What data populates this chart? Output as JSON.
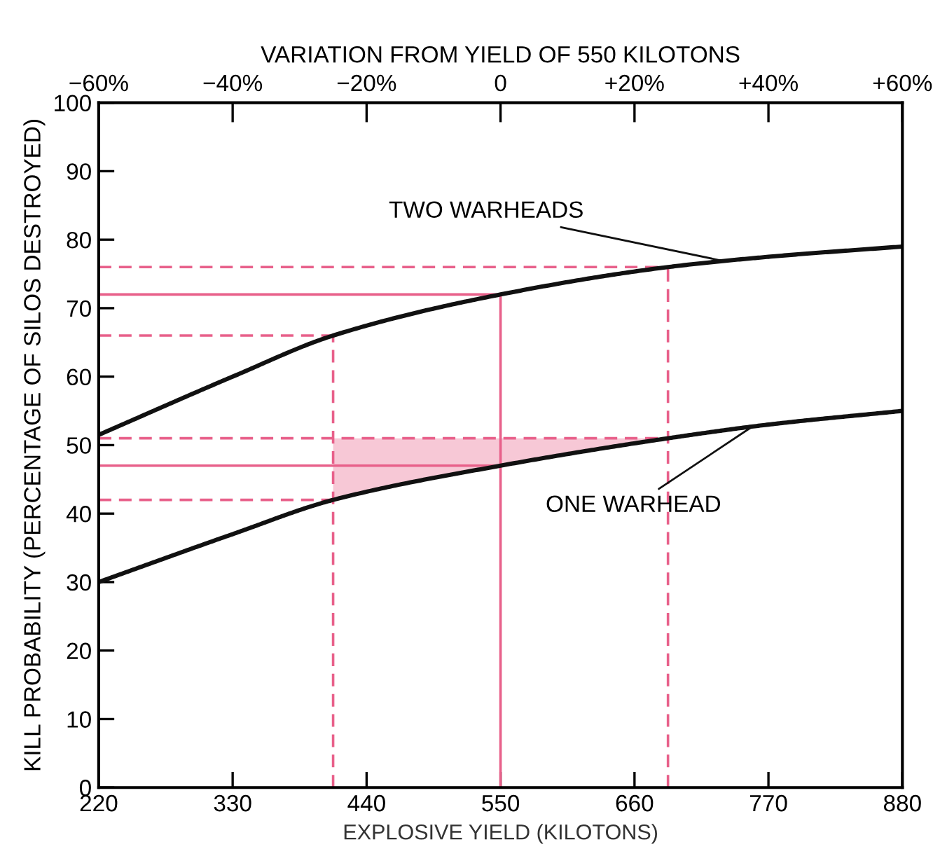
{
  "chart_data": {
    "type": "line",
    "xlabel": "EXPLOSIVE YIELD (KILOTONS)",
    "ylabel": "KILL PROBABILITY (PERCENTAGE OF SILOS DESTROYED)",
    "x2label": "VARIATION FROM YIELD OF 550 KILOTONS",
    "xlim": [
      220,
      880
    ],
    "xticks": [
      220,
      330,
      440,
      550,
      660,
      770,
      880
    ],
    "ylim": [
      0,
      100
    ],
    "yticks": [
      0,
      10,
      20,
      30,
      40,
      50,
      60,
      70,
      80,
      90,
      100
    ],
    "x2lim": [
      -60,
      60
    ],
    "x2ticks": [
      {
        "value": -60,
        "label": "−60%"
      },
      {
        "value": -40,
        "label": "−40%"
      },
      {
        "value": -20,
        "label": "−20%"
      },
      {
        "value": 0,
        "label": "0"
      },
      {
        "value": 20,
        "label": "+20%"
      },
      {
        "value": 40,
        "label": "+40%"
      },
      {
        "value": 60,
        "label": "+60%"
      }
    ],
    "grid": false,
    "legend": false,
    "marker": "none",
    "series": [
      {
        "type": "line",
        "color": "#e8608a",
        "line_style": "dashed",
        "x": [
          220,
          687.5
        ],
        "values": [
          76,
          76
        ]
      },
      {
        "type": "line",
        "color": "#e8608a",
        "line_style": "dashed",
        "x": [
          220,
          412.5
        ],
        "values": [
          66,
          66
        ]
      },
      {
        "type": "line",
        "color": "#e8608a",
        "line_style": "dashed",
        "x": [
          220,
          412.5,
          550,
          687.5
        ],
        "values": [
          51,
          51,
          51,
          51
        ],
        "lower": [
          null,
          42,
          47,
          51
        ],
        "upper": [
          null,
          51,
          51,
          51
        ]
      },
      {
        "type": "line",
        "color": "#e8608a",
        "line_style": "dashed",
        "x": [
          220,
          412.5
        ],
        "values": [
          42,
          42
        ]
      },
      {
        "type": "line",
        "color": "#e8608a",
        "line_style": "dashed",
        "x": [
          412.5,
          412.5
        ],
        "values": [
          0,
          66
        ]
      },
      {
        "type": "line",
        "color": "#e8608a",
        "line_style": "dashed",
        "x": [
          687.5,
          687.5
        ],
        "values": [
          0,
          76
        ]
      },
      {
        "type": "line",
        "color": "#e8608a",
        "line_style": "solid",
        "x": [
          220,
          550
        ],
        "values": [
          72,
          72
        ]
      },
      {
        "type": "line",
        "color": "#e8608a",
        "line_style": "solid",
        "x": [
          220,
          550
        ],
        "values": [
          47,
          47
        ]
      },
      {
        "type": "line",
        "color": "#e8608a",
        "line_style": "solid",
        "x": [
          550,
          550
        ],
        "values": [
          0,
          72
        ]
      },
      {
        "color": "#111111",
        "line_style": "solid",
        "x": [
          220,
          330,
          412.5,
          550,
          687.5,
          770,
          880
        ],
        "values": [
          51.5,
          60,
          66,
          72,
          76,
          77.5,
          79
        ]
      },
      {
        "color": "#111111",
        "line_style": "solid",
        "x": [
          220,
          330,
          412.5,
          550,
          687.5,
          770,
          880
        ],
        "values": [
          30,
          37,
          42,
          47,
          51,
          53,
          55
        ]
      }
    ],
    "annotations": [
      {
        "text": "TWO WARHEADS",
        "x": 730,
        "y": 77
      },
      {
        "text": "ONE WARHEAD",
        "x": 755,
        "y": 52.5
      }
    ]
  }
}
